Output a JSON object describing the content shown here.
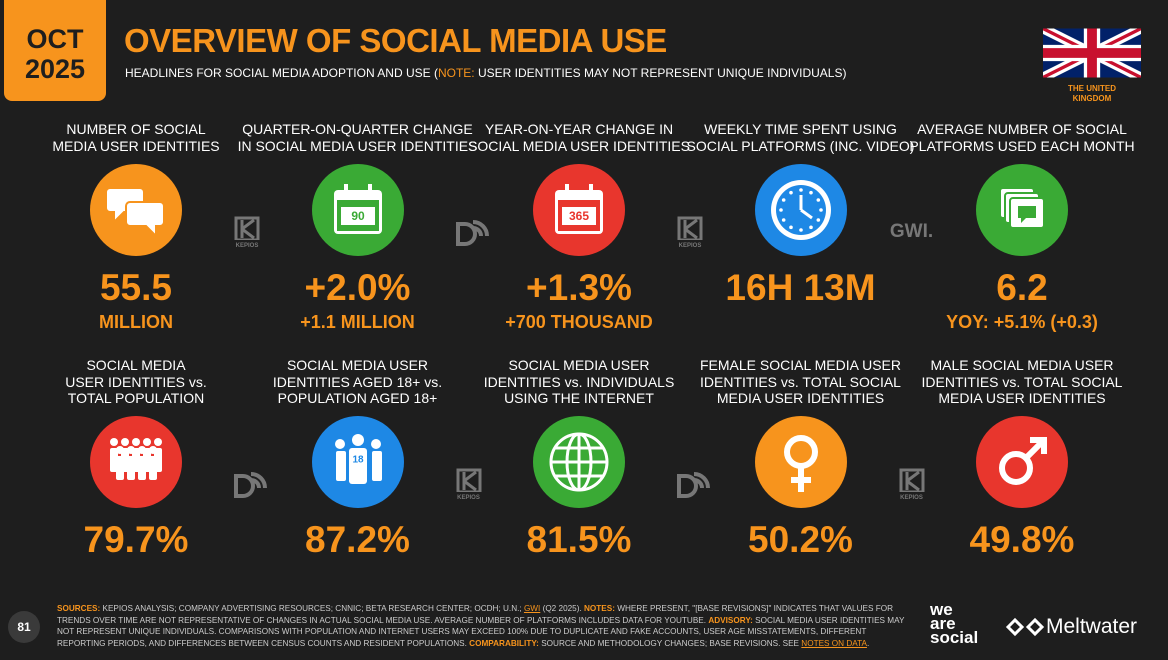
{
  "header": {
    "month": "OCT",
    "year": "2025",
    "title": "OVERVIEW OF SOCIAL MEDIA USE",
    "subtitle_start": "HEADLINES FOR SOCIAL MEDIA ADOPTION AND USE (",
    "note_label": "NOTE:",
    "note_text": " USER IDENTITIES MAY NOT REPRESENT UNIQUE INDIVIDUALS)",
    "country": [
      "THE UNITED",
      "KINGDOM"
    ]
  },
  "tiles": [
    {
      "label": [
        "NUMBER OF SOCIAL",
        "MEDIA USER IDENTITIES"
      ],
      "value": "55.5",
      "sub": "MILLION"
    },
    {
      "label": [
        "QUARTER-ON-QUARTER CHANGE",
        "IN SOCIAL MEDIA USER IDENTITIES"
      ],
      "value": "+2.0%",
      "sub": "+1.1 MILLION",
      "icon_text": "90"
    },
    {
      "label": [
        "YEAR-ON-YEAR CHANGE IN",
        "SOCIAL MEDIA USER IDENTITIES"
      ],
      "value": "+1.3%",
      "sub": "+700 THOUSAND",
      "icon_text": "365"
    },
    {
      "label": [
        "WEEKLY TIME SPENT USING",
        "SOCIAL PLATFORMS (INC. VIDEO)"
      ],
      "value": "16H 13M"
    },
    {
      "label": [
        "AVERAGE NUMBER OF SOCIAL",
        "PLATFORMS USED EACH MONTH"
      ],
      "value": "6.2",
      "sub": "YOY: +5.1% (+0.3)"
    },
    {
      "label": [
        "SOCIAL MEDIA",
        "USER IDENTITIES vs.",
        "TOTAL POPULATION"
      ],
      "value": "79.7%"
    },
    {
      "label": [
        "SOCIAL MEDIA USER",
        "IDENTITIES AGED 18+ vs.",
        "POPULATION AGED 18+"
      ],
      "value": "87.2%",
      "icon_text": "18"
    },
    {
      "label": [
        "SOCIAL MEDIA USER",
        "IDENTITIES vs. INDIVIDUALS",
        "USING THE INTERNET"
      ],
      "value": "81.5%"
    },
    {
      "label": [
        "FEMALE SOCIAL MEDIA USER",
        "IDENTITIES vs. TOTAL SOCIAL",
        "MEDIA USER IDENTITIES"
      ],
      "value": "50.2%"
    },
    {
      "label": [
        "MALE SOCIAL MEDIA USER",
        "IDENTITIES vs. TOTAL SOCIAL",
        "MEDIA USER IDENTITIES"
      ],
      "value": "49.8%"
    }
  ],
  "sources": [
    "KEPIOS",
    "KEPIOS",
    "GWI.",
    "KEPIOS",
    "KEPIOS"
  ],
  "footer": [
    {
      "label": "SOURCES:"
    },
    {
      "text": " KEPIOS ANALYSIS; COMPANY ADVERTISING RESOURCES; CNNIC; BETA RESEARCH CENTER; OCDH; U.N.; "
    },
    {
      "link": "GWI"
    },
    {
      "text": " (Q2 2025). "
    },
    {
      "label": "NOTES:"
    },
    {
      "text": " WHERE PRESENT, \"[BASE REVISIONS]\" INDICATES THAT VALUES FOR TRENDS OVER TIME ARE NOT REPRESENTATIVE OF CHANGES IN ACTUAL SOCIAL MEDIA USE. AVERAGE NUMBER OF PLATFORMS INCLUDES DATA FOR YOUTUBE. "
    },
    {
      "label": "ADVISORY:"
    },
    {
      "text": " SOCIAL MEDIA USER IDENTITIES MAY NOT REPRESENT UNIQUE INDIVIDUALS. COMPARISONS WITH POPULATION AND INTERNET USERS MAY EXCEED 100% DUE TO DUPLICATE AND FAKE ACCOUNTS, USER AGE MISSTATEMENTS, DIFFERENT REPORTING PERIODS, AND DIFFERENCES BETWEEN CENSUS COUNTS AND RESIDENT POPULATIONS. "
    },
    {
      "label": "COMPARABILITY:"
    },
    {
      "text": " SOURCE AND METHODOLOGY CHANGES; BASE REVISIONS. SEE "
    },
    {
      "link": "NOTES ON DATA"
    },
    {
      "text": "."
    }
  ],
  "page_number": "81",
  "brand_we_are_social": [
    "we",
    "are",
    "social"
  ],
  "brand_meltwater": "Meltwater"
}
